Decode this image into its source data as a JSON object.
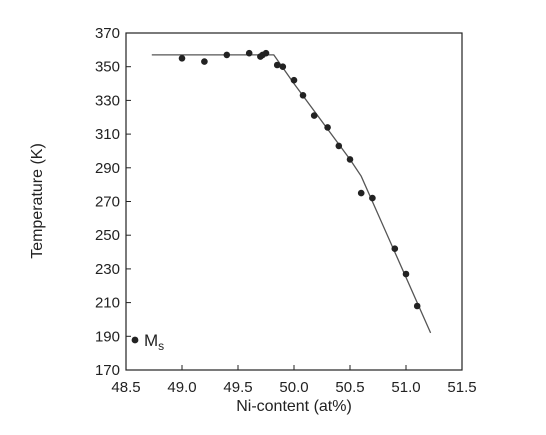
{
  "chart_data": {
    "type": "scatter",
    "xlabel": "Ni-content (at%)",
    "ylabel": "Temperature (K)",
    "xlim": [
      48.5,
      51.5
    ],
    "ylim": [
      170,
      370
    ],
    "x_ticks": [
      "48.5",
      "49.0",
      "49.5",
      "50.0",
      "50.5",
      "51.0",
      "51.5"
    ],
    "y_ticks": [
      "170",
      "190",
      "210",
      "230",
      "250",
      "270",
      "290",
      "310",
      "330",
      "350",
      "370"
    ],
    "legend": {
      "marker_label": "M",
      "marker_subscript": "s",
      "position": "bottom-left"
    },
    "series": [
      {
        "name": "Ms",
        "kind": "points",
        "color": "#222222",
        "points": [
          [
            49.0,
            355
          ],
          [
            49.2,
            353
          ],
          [
            49.4,
            357
          ],
          [
            49.6,
            358
          ],
          [
            49.7,
            356
          ],
          [
            49.72,
            357
          ],
          [
            49.75,
            358
          ],
          [
            49.85,
            351
          ],
          [
            49.9,
            350
          ],
          [
            50.0,
            342
          ],
          [
            50.08,
            333
          ],
          [
            50.18,
            321
          ],
          [
            50.3,
            314
          ],
          [
            50.4,
            303
          ],
          [
            50.5,
            295
          ],
          [
            50.6,
            275
          ],
          [
            50.7,
            272
          ],
          [
            50.9,
            242
          ],
          [
            51.0,
            227
          ],
          [
            51.1,
            208
          ]
        ]
      },
      {
        "kind": "line",
        "color": "#555555",
        "points": [
          [
            48.73,
            357
          ],
          [
            49.82,
            357
          ],
          [
            50.0,
            340
          ],
          [
            50.5,
            295
          ],
          [
            50.6,
            285
          ],
          [
            50.9,
            240
          ],
          [
            51.22,
            192
          ]
        ]
      }
    ]
  }
}
